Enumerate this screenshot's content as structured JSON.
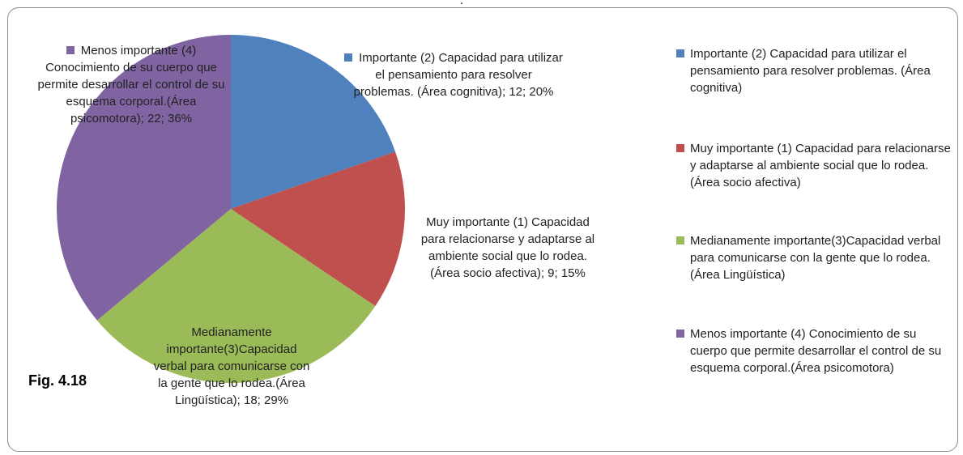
{
  "chart_data": {
    "type": "pie",
    "subtitle": ".",
    "figure_label": "Fig. 4.18",
    "categories": [
      "Importante (2) Capacidad para utilizar el pensamiento para resolver problemas.  (Área cognitiva)",
      "Muy importante (1) Capacidad para relacionarse y adaptarse al ambiente social que lo rodea. (Área socio afectiva)",
      "Medianamente importante(3)Capacidad verbal para comunicarse con la gente que lo rodea.(Área Lingüística)",
      "Menos importante (4) Conocimiento de su cuerpo que permite desarrollar el control de su esquema corporal.(Área psicomotora)"
    ],
    "values": [
      12,
      9,
      18,
      22
    ],
    "value_labels": [
      "Importante (2) Capacidad para utilizar el pensamiento para resolver problemas. (Área cognitiva); 12; 20%",
      "Muy importante (1) Capacidad para relacionarse y adaptarse al ambiente social que lo rodea. (Área socio afectiva); 9; 15%",
      "Medianamente importante(3)Capacidad verbal para comunicarse con la gente que lo rodea.(Área Lingüística); 18; 29%",
      "Menos importante (4) Conocimiento de su cuerpo que permite desarrollar el control de su esquema corporal.(Área psicomotora); 22; 36%"
    ],
    "colors": [
      "#4f81bd",
      "#c0504d",
      "#9bbb59",
      "#8064a2"
    ],
    "legend": "right"
  }
}
